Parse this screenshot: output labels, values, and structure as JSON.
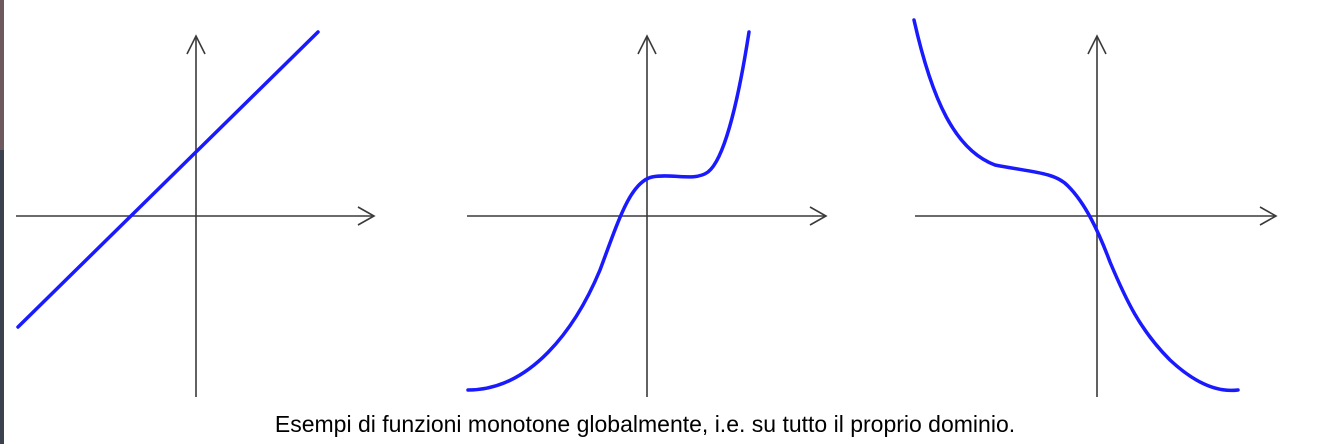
{
  "caption": "Esempi di funzioni monotone globalmente, i.e. su tutto il proprio dominio.",
  "colors": {
    "curve": "#1a1aff",
    "axis": "#3a3a3a",
    "background": "#ffffff"
  },
  "panels": [
    {
      "name": "panel-linear-increasing",
      "curve": "linear-increasing"
    },
    {
      "name": "panel-cubic-increasing",
      "curve": "increasing-with-plateau"
    },
    {
      "name": "panel-cubic-decreasing",
      "curve": "decreasing-with-plateau"
    }
  ]
}
